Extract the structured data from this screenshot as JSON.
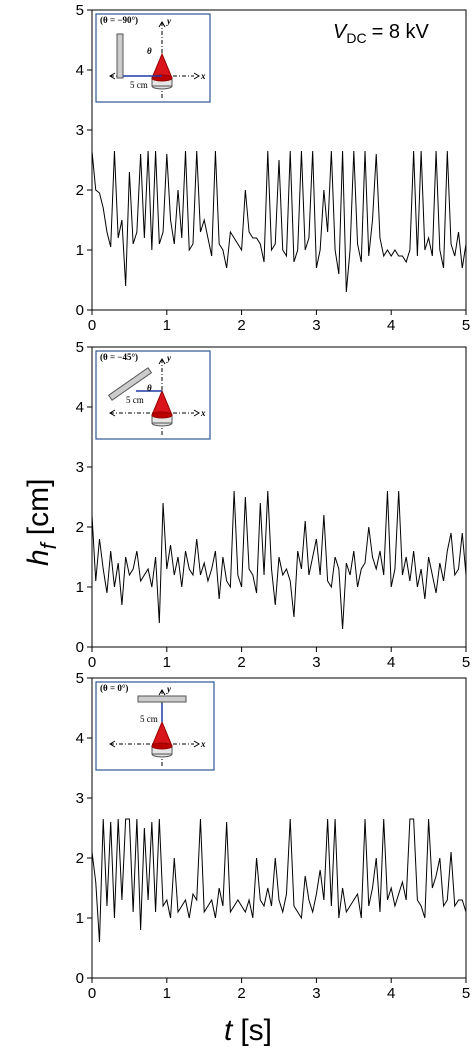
{
  "chart_data": [
    {
      "type": "line",
      "x": [
        0,
        0.05,
        0.1,
        0.15,
        0.2,
        0.25,
        0.3,
        0.35,
        0.4,
        0.45,
        0.5,
        0.55,
        0.6,
        0.65,
        0.7,
        0.75,
        0.8,
        0.85,
        0.9,
        0.95,
        1,
        1.05,
        1.1,
        1.15,
        1.2,
        1.25,
        1.3,
        1.35,
        1.4,
        1.45,
        1.5,
        1.55,
        1.6,
        1.65,
        1.7,
        1.75,
        1.8,
        1.85,
        1.9,
        1.95,
        2,
        2.05,
        2.1,
        2.15,
        2.2,
        2.25,
        2.3,
        2.35,
        2.4,
        2.45,
        2.5,
        2.55,
        2.6,
        2.65,
        2.7,
        2.75,
        2.8,
        2.85,
        2.9,
        2.95,
        3,
        3.05,
        3.1,
        3.15,
        3.2,
        3.25,
        3.3,
        3.35,
        3.4,
        3.45,
        3.5,
        3.55,
        3.6,
        3.65,
        3.7,
        3.75,
        3.8,
        3.85,
        3.9,
        3.95,
        4,
        4.05,
        4.1,
        4.15,
        4.2,
        4.25,
        4.3,
        4.35,
        4.4,
        4.45,
        4.5,
        4.55,
        4.6,
        4.65,
        4.7,
        4.75,
        4.8,
        4.85,
        4.9,
        4.95,
        5
      ],
      "values": [
        2.65,
        2.0,
        1.95,
        1.7,
        1.3,
        1.05,
        2.65,
        1.2,
        1.5,
        0.4,
        2.3,
        1.1,
        1.3,
        2.6,
        1.2,
        2.65,
        1.0,
        2.65,
        1.1,
        1.3,
        2.6,
        1.5,
        1.1,
        2.0,
        1.2,
        2.65,
        1.0,
        1.1,
        2.65,
        1.3,
        1.5,
        1.2,
        0.9,
        2.65,
        1.1,
        1.0,
        0.7,
        1.3,
        1.2,
        1.1,
        1.0,
        2.0,
        1.3,
        1.2,
        1.2,
        1.1,
        0.8,
        2.65,
        1.0,
        1.1,
        2.5,
        1.0,
        0.9,
        2.65,
        0.8,
        1.0,
        2.65,
        1.0,
        1.2,
        2.65,
        0.7,
        1.0,
        2.0,
        1.3,
        2.65,
        1.0,
        0.6,
        2.65,
        0.3,
        1.0,
        2.65,
        1.1,
        0.8,
        2.65,
        0.9,
        1.5,
        2.6,
        1.2,
        0.9,
        1.0,
        0.9,
        1.0,
        0.9,
        0.9,
        0.8,
        1.0,
        2.65,
        0.9,
        2.65,
        1.0,
        1.2,
        0.9,
        2.65,
        1.0,
        0.7,
        2.65,
        1.1,
        0.9,
        1.3,
        0.7,
        1.1
      ],
      "color": "#000000",
      "xlim": [
        0,
        5
      ],
      "ylim": [
        0,
        5
      ],
      "xticks": [
        0,
        1,
        2,
        3,
        4,
        5
      ],
      "yticks": [
        0,
        1,
        2,
        3,
        4,
        5
      ],
      "inset": {
        "title": "(θ = −90°)",
        "angle": "θ",
        "y": "y",
        "x": "x",
        "distance": "5 cm"
      }
    },
    {
      "type": "line",
      "x": [
        0,
        0.05,
        0.1,
        0.15,
        0.2,
        0.25,
        0.3,
        0.35,
        0.4,
        0.45,
        0.5,
        0.55,
        0.6,
        0.65,
        0.7,
        0.75,
        0.8,
        0.85,
        0.9,
        0.95,
        1,
        1.05,
        1.1,
        1.15,
        1.2,
        1.25,
        1.3,
        1.35,
        1.4,
        1.45,
        1.5,
        1.55,
        1.6,
        1.65,
        1.7,
        1.75,
        1.8,
        1.85,
        1.9,
        1.95,
        2,
        2.05,
        2.1,
        2.15,
        2.2,
        2.25,
        2.3,
        2.35,
        2.4,
        2.45,
        2.5,
        2.55,
        2.6,
        2.65,
        2.7,
        2.75,
        2.8,
        2.85,
        2.9,
        2.95,
        3,
        3.05,
        3.1,
        3.15,
        3.2,
        3.25,
        3.3,
        3.35,
        3.4,
        3.45,
        3.5,
        3.55,
        3.6,
        3.65,
        3.7,
        3.75,
        3.8,
        3.85,
        3.9,
        3.95,
        4,
        4.05,
        4.1,
        4.15,
        4.2,
        4.25,
        4.3,
        4.35,
        4.4,
        4.45,
        4.5,
        4.55,
        4.6,
        4.65,
        4.7,
        4.75,
        4.8,
        4.85,
        4.9,
        4.95,
        5
      ],
      "values": [
        2.2,
        1.1,
        1.8,
        1.3,
        0.9,
        1.6,
        1.0,
        1.4,
        0.7,
        1.5,
        1.2,
        1.3,
        1.6,
        1.1,
        1.2,
        1.3,
        1.0,
        1.5,
        0.4,
        2.4,
        1.3,
        1.7,
        1.2,
        1.5,
        1.0,
        1.6,
        1.3,
        1.2,
        1.8,
        1.2,
        1.4,
        1.1,
        1.3,
        1.6,
        0.8,
        1.5,
        1.1,
        1.0,
        2.6,
        1.2,
        1.0,
        2.5,
        1.3,
        1.2,
        0.9,
        2.4,
        1.2,
        2.6,
        1.3,
        0.7,
        1.5,
        1.2,
        1.3,
        1.1,
        0.5,
        1.6,
        1.3,
        2.1,
        1.2,
        1.5,
        1.8,
        1.2,
        2.2,
        1.1,
        1.0,
        1.5,
        1.3,
        0.3,
        1.4,
        1.2,
        1.6,
        1.0,
        1.3,
        1.4,
        2.0,
        1.5,
        1.3,
        1.6,
        1.2,
        2.6,
        1.0,
        1.3,
        2.6,
        1.2,
        1.5,
        1.1,
        1.6,
        1.0,
        1.3,
        0.8,
        1.5,
        1.2,
        0.9,
        1.4,
        1.1,
        1.6,
        1.9,
        1.2,
        1.3,
        1.9,
        1.2
      ],
      "color": "#000000",
      "xlim": [
        0,
        5
      ],
      "ylim": [
        0,
        5
      ],
      "xticks": [
        0,
        1,
        2,
        3,
        4,
        5
      ],
      "yticks": [
        0,
        1,
        2,
        3,
        4,
        5
      ],
      "inset": {
        "title": "(θ = −45°)",
        "angle": "θ",
        "y": "y",
        "x": "x",
        "distance": "5 cm"
      }
    },
    {
      "type": "line",
      "x": [
        0,
        0.05,
        0.1,
        0.15,
        0.2,
        0.25,
        0.3,
        0.35,
        0.4,
        0.45,
        0.5,
        0.55,
        0.6,
        0.65,
        0.7,
        0.75,
        0.8,
        0.85,
        0.9,
        0.95,
        1,
        1.05,
        1.1,
        1.15,
        1.2,
        1.25,
        1.3,
        1.35,
        1.4,
        1.45,
        1.5,
        1.55,
        1.6,
        1.65,
        1.7,
        1.75,
        1.8,
        1.85,
        1.9,
        1.95,
        2,
        2.05,
        2.1,
        2.15,
        2.2,
        2.25,
        2.3,
        2.35,
        2.4,
        2.45,
        2.5,
        2.55,
        2.6,
        2.65,
        2.7,
        2.75,
        2.8,
        2.85,
        2.9,
        2.95,
        3,
        3.05,
        3.1,
        3.15,
        3.2,
        3.25,
        3.3,
        3.35,
        3.4,
        3.45,
        3.5,
        3.55,
        3.6,
        3.65,
        3.7,
        3.75,
        3.8,
        3.85,
        3.9,
        3.95,
        4,
        4.05,
        4.1,
        4.15,
        4.2,
        4.25,
        4.3,
        4.35,
        4.4,
        4.45,
        4.5,
        4.55,
        4.6,
        4.65,
        4.7,
        4.75,
        4.8,
        4.85,
        4.9,
        4.95,
        5
      ],
      "values": [
        2.1,
        1.6,
        0.6,
        2.65,
        1.2,
        2.6,
        1.0,
        2.65,
        1.3,
        2.65,
        2.65,
        1.1,
        2.65,
        0.8,
        2.5,
        1.3,
        2.6,
        1.1,
        2.65,
        1.2,
        1.3,
        1.0,
        2.0,
        1.1,
        1.2,
        1.3,
        1.0,
        1.4,
        1.3,
        2.65,
        1.1,
        1.2,
        1.3,
        1.0,
        1.5,
        1.2,
        2.6,
        1.1,
        1.2,
        1.3,
        1.2,
        1.1,
        1.3,
        1.0,
        2.0,
        1.3,
        1.2,
        1.5,
        1.2,
        2.0,
        1.3,
        1.1,
        1.4,
        2.65,
        1.2,
        1.1,
        1.0,
        1.7,
        1.3,
        1.1,
        1.4,
        1.8,
        1.3,
        2.65,
        1.2,
        2.65,
        1.0,
        1.5,
        1.1,
        1.2,
        1.3,
        1.4,
        1.0,
        2.65,
        1.2,
        1.5,
        2.0,
        1.1,
        2.65,
        1.3,
        1.5,
        1.2,
        1.4,
        1.6,
        1.3,
        2.65,
        2.65,
        1.3,
        1.2,
        1.0,
        2.65,
        1.5,
        1.7,
        2.0,
        1.2,
        1.3,
        2.1,
        1.2,
        1.3,
        1.3,
        1.1
      ],
      "color": "#000000",
      "xlim": [
        0,
        5
      ],
      "ylim": [
        0,
        5
      ],
      "xticks": [
        0,
        1,
        2,
        3,
        4,
        5
      ],
      "yticks": [
        0,
        1,
        2,
        3,
        4,
        5
      ],
      "inset": {
        "title": "(θ = 0°)",
        "y": "y",
        "x": "x",
        "distance": "5 cm"
      }
    }
  ],
  "figure": {
    "annotation": {
      "symbol": "V",
      "subscript": "DC",
      "text": "= 8 kV"
    },
    "ylabel": {
      "symbol": "h",
      "subscript": "f",
      "unit": "[cm]"
    },
    "xlabel": {
      "symbol": "t",
      "unit": "[s]"
    }
  }
}
